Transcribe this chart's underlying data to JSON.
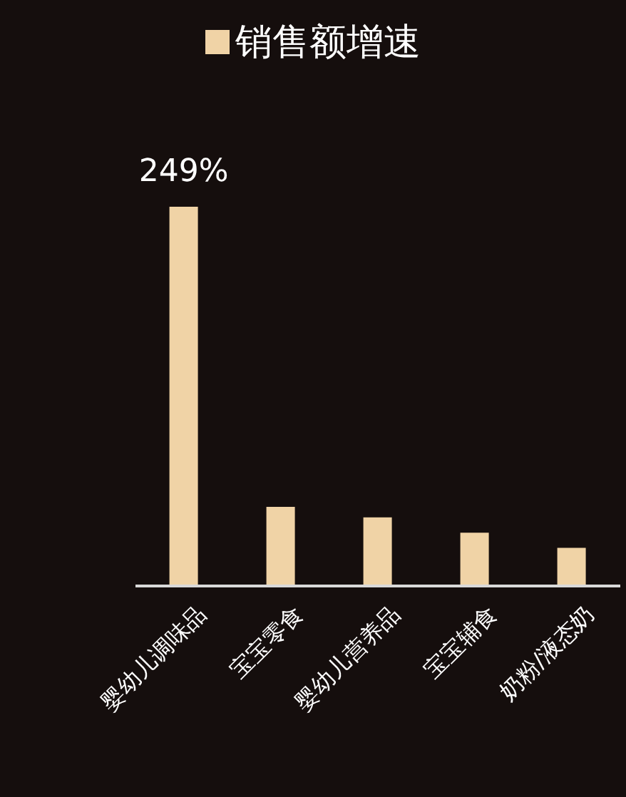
{
  "chart_data": {
    "type": "bar",
    "categories": [
      "婴幼儿调味品",
      "宝宝零食",
      "婴幼儿营养品",
      "宝宝辅食",
      "奶粉/液态奶"
    ],
    "series": [
      {
        "name": "销售额增速",
        "color": "#f0d3a6",
        "values": [
          249,
          52,
          45,
          35,
          25
        ],
        "value_labels": [
          "249%",
          null,
          null,
          null,
          null
        ]
      }
    ],
    "legend": "top",
    "tick_labels": "x"
  }
}
